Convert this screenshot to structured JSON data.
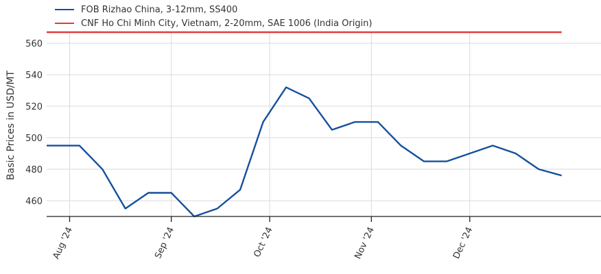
{
  "colors": {
    "series_fob": "#154f9e",
    "series_cnf": "#e03c3c",
    "grid": "#d9d9d9",
    "axis": "#222222",
    "text": "#333333"
  },
  "chart_data": {
    "type": "line",
    "ylabel": "Basic Prices in USD/MT",
    "xlabel": "",
    "title": "",
    "legend_position": "top-left",
    "grid": true,
    "ylim": [
      450,
      567
    ],
    "xlim": [
      "2024-07-25",
      "2025-01-10"
    ],
    "yticks": [
      460,
      480,
      500,
      520,
      540,
      560
    ],
    "xticks": [
      {
        "date": "2024-08-01",
        "label": "Aug '24"
      },
      {
        "date": "2024-09-01",
        "label": "Sep '24"
      },
      {
        "date": "2024-10-01",
        "label": "Oct '24"
      },
      {
        "date": "2024-11-01",
        "label": "Nov '24"
      },
      {
        "date": "2024-12-01",
        "label": "Dec '24"
      }
    ],
    "series": [
      {
        "name": "FOB Rizhao China, 3-12mm, SS400",
        "color": "#154f9e",
        "points": [
          [
            "2024-07-25",
            495
          ],
          [
            "2024-08-04",
            495
          ],
          [
            "2024-08-11",
            480
          ],
          [
            "2024-08-18",
            455
          ],
          [
            "2024-08-25",
            465
          ],
          [
            "2024-09-01",
            465
          ],
          [
            "2024-09-08",
            450
          ],
          [
            "2024-09-15",
            455
          ],
          [
            "2024-09-22",
            467
          ],
          [
            "2024-09-29",
            510
          ],
          [
            "2024-10-06",
            532
          ],
          [
            "2024-10-13",
            525
          ],
          [
            "2024-10-20",
            505
          ],
          [
            "2024-10-27",
            510
          ],
          [
            "2024-11-03",
            510
          ],
          [
            "2024-11-10",
            495
          ],
          [
            "2024-11-17",
            485
          ],
          [
            "2024-11-24",
            485
          ],
          [
            "2024-12-01",
            490
          ],
          [
            "2024-12-08",
            495
          ],
          [
            "2024-12-15",
            490
          ],
          [
            "2024-12-22",
            480
          ],
          [
            "2024-12-29",
            476
          ]
        ]
      },
      {
        "name": "CNF Ho Chi Minh City, Vietnam, 2-20mm, SAE 1006 (India Origin)",
        "color": "#e03c3c",
        "points": [
          [
            "2024-07-25",
            567
          ],
          [
            "2024-12-29",
            567
          ]
        ]
      }
    ]
  }
}
